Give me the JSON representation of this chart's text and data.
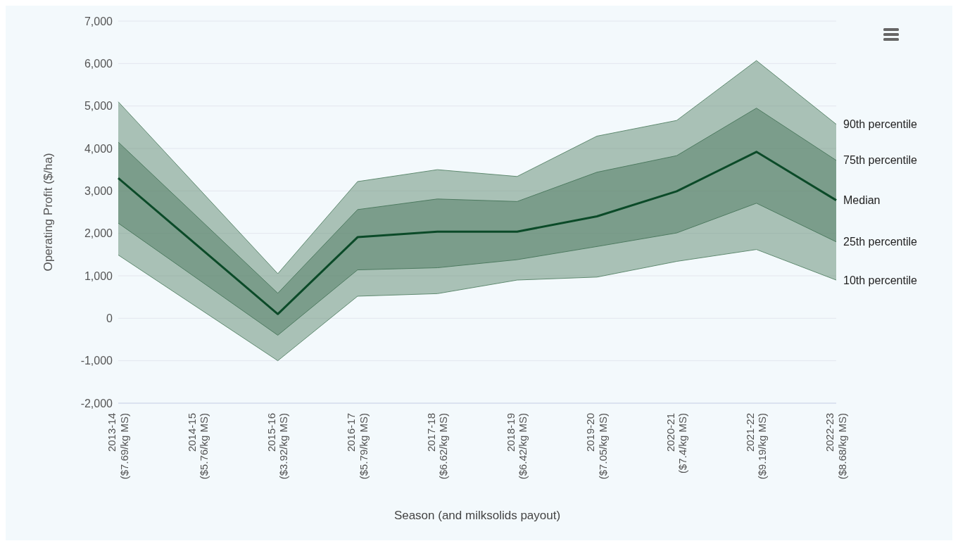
{
  "chart_data": {
    "type": "line",
    "xlabel": "Season (and milksolids payout)",
    "ylabel": "Operating Profit ($/ha)",
    "categories": [
      "2013-14 ($7.69/kg MS)",
      "2014-15 ($5.76/kg MS)",
      "2015-16 ($3.92/kg MS)",
      "2016-17 ($5.79/kg MS)",
      "2017-18 ($6.62/kg MS)",
      "2018-19 ($6.42/kg MS)",
      "2019-20 ($7.05/kg MS)",
      "2020-21 ($7.4/kg MS)",
      "2021-22 ($9.19/kg MS)",
      "2022-23 ($8.68/kg MS)"
    ],
    "series": [
      {
        "name": "90th percentile",
        "color": "#5f8a70",
        "values": [
          5100,
          null,
          1050,
          3220,
          3500,
          3340,
          4290,
          4660,
          6070,
          4570
        ],
        "lower": [
          1490,
          null,
          -1000,
          520,
          580,
          900,
          970,
          1340,
          1620,
          900
        ],
        "upper": [
          5100,
          null,
          1050,
          3220,
          3500,
          3340,
          4290,
          4660,
          6070,
          4570
        ]
      },
      {
        "name": "75th percentile",
        "color": "#4d7a60",
        "values": [
          4150,
          null,
          590,
          2560,
          2810,
          2750,
          3440,
          3830,
          4950,
          3720
        ],
        "lower": [
          2240,
          null,
          -400,
          1140,
          1190,
          1380,
          1690,
          2010,
          2710,
          1800
        ],
        "upper": [
          4150,
          null,
          590,
          2560,
          2810,
          2750,
          3440,
          3830,
          4950,
          3720
        ]
      },
      {
        "name": "Median",
        "color": "#0b4a28",
        "values": [
          3300,
          null,
          100,
          1910,
          2040,
          2040,
          2400,
          2990,
          3920,
          2780
        ]
      },
      {
        "name": "25th percentile",
        "color": "#4d7a60",
        "values": [
          2240,
          null,
          -400,
          1140,
          1190,
          1380,
          1690,
          2010,
          2710,
          1800
        ]
      },
      {
        "name": "10th percentile",
        "color": "#5f8a70",
        "values": [
          1490,
          null,
          -1000,
          520,
          580,
          900,
          970,
          1340,
          1620,
          900
        ]
      }
    ],
    "ylim": [
      -2000,
      7000
    ],
    "yticks": [
      {
        "value": -2000,
        "label": "-2,000"
      },
      {
        "value": -1000,
        "label": "-1,000"
      },
      0,
      {
        "value": 1000,
        "label": "1,000"
      },
      {
        "value": 2000,
        "label": "2,000"
      },
      {
        "value": 3000,
        "label": "3,000"
      },
      {
        "value": 4000,
        "label": "4,000"
      },
      {
        "value": 5000,
        "label": "5,000"
      },
      {
        "value": 6000,
        "label": "6,000"
      },
      {
        "value": 7000,
        "label": "7,000"
      }
    ],
    "grid": "y",
    "legend": false,
    "marker": "none",
    "line_style": "solid"
  }
}
